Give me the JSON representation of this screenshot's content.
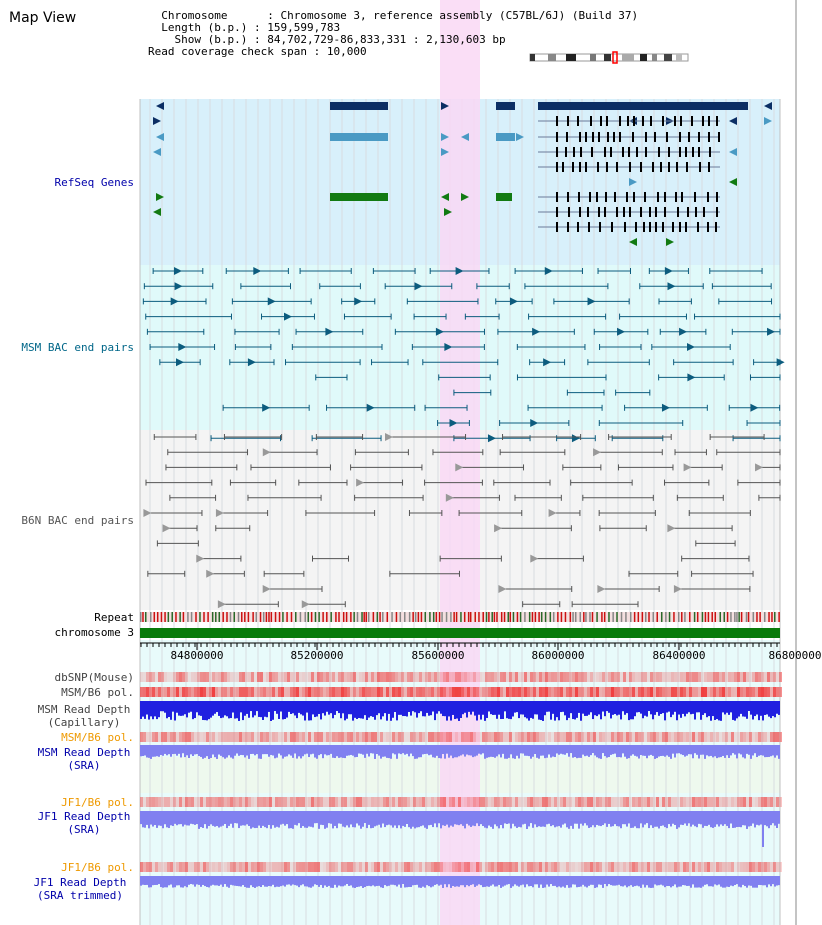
{
  "title": "Map View",
  "header": {
    "chromosome_key": "Chromosome",
    "chromosome_value": "Chromosome 3, reference assembly (C57BL/6J) (Build 37)",
    "length_key": "Length (b.p.)",
    "length_value": "159,599,783",
    "show_key": "Show (b.p.)",
    "show_value": "84,702,729-86,833,331 : 2,130,603 bp",
    "coverage_key": "Read coverage check span",
    "coverage_value": "10,000"
  },
  "tracks": {
    "refseq": "RefSeq Genes",
    "msm_bac": "MSM BAC end pairs",
    "b6n_bac": "B6N BAC end pairs",
    "repeat": "Repeat",
    "chromosome": "chromosome 3",
    "dbsnp": "dbSNP(Mouse)",
    "msm_b6_pol_1": "MSM/B6 pol.",
    "msm_depth_cap_1": "MSM Read Depth",
    "msm_depth_cap_2": "(Capillary)",
    "msm_b6_pol_2": "MSM/B6 pol.",
    "msm_depth_sra_1": "MSM Read Depth",
    "msm_depth_sra_2": "(SRA)",
    "jf1_pol_1": "JF1/B6 pol.",
    "jf1_depth_sra_1": "JF1 Read Depth",
    "jf1_depth_sra_2": "(SRA)",
    "jf1_pol_2": "JF1/B6 pol.",
    "jf1_depth_trim_1": "JF1 Read Depth",
    "jf1_depth_trim_2": "(SRA trimmed)"
  },
  "ruler": {
    "ticks": [
      "84800000",
      "85200000",
      "85600000",
      "86000000",
      "86400000",
      "86800000"
    ]
  },
  "colors": {
    "highlight": "#f9d8f5",
    "refseq_bg": "#d8f0fb",
    "msm_bg": "#e0fafa",
    "b6n_bg": "#f4f4f4",
    "lower_bg": "#e8fbfb",
    "gene_navy": "#0b2e64",
    "gene_blue": "#4a9ac4",
    "gene_green": "#127a12",
    "msm_line": "#0c5c7e",
    "b6n_line": "#555555",
    "chromosome_bar": "#0a7a0a",
    "depth_blue": "#2020e0",
    "depth_light": "#8080f0",
    "pol_red": "#f04040",
    "label_blue": "#0000aa",
    "label_teal": "#006688",
    "label_orange": "#ee9900"
  }
}
